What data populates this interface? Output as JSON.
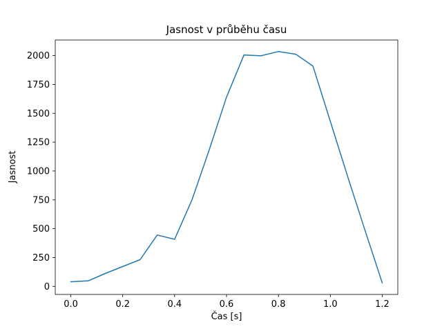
{
  "chart_data": {
    "type": "line",
    "title": "Jasnost v průběhu času",
    "xlabel": "Čas [s]",
    "ylabel": "Jasnost",
    "x": [
      0.0,
      0.067,
      0.133,
      0.2,
      0.267,
      0.333,
      0.4,
      0.467,
      0.533,
      0.6,
      0.667,
      0.733,
      0.8,
      0.867,
      0.933,
      1.0,
      1.067,
      1.133,
      1.2
    ],
    "y": [
      40,
      48,
      112,
      172,
      232,
      445,
      408,
      750,
      1180,
      1640,
      2005,
      1998,
      2035,
      2012,
      1910,
      1430,
      950,
      490,
      30
    ],
    "xlim": [
      -0.06,
      1.26
    ],
    "ylim": [
      -70,
      2135
    ],
    "xticks": [
      0.0,
      0.2,
      0.4,
      0.6,
      0.8,
      1.0,
      1.2
    ],
    "xtick_labels": [
      "0.0",
      "0.2",
      "0.4",
      "0.6",
      "0.8",
      "1.0",
      "1.2"
    ],
    "yticks": [
      0,
      250,
      500,
      750,
      1000,
      1250,
      1500,
      1750,
      2000
    ],
    "ytick_labels": [
      "0",
      "250",
      "500",
      "750",
      "1000",
      "1250",
      "1500",
      "1750",
      "2000"
    ],
    "line_color": "#1f77b4",
    "spine_color": "#000000",
    "background": "#ffffff",
    "grid": false,
    "legend_position": "none"
  }
}
